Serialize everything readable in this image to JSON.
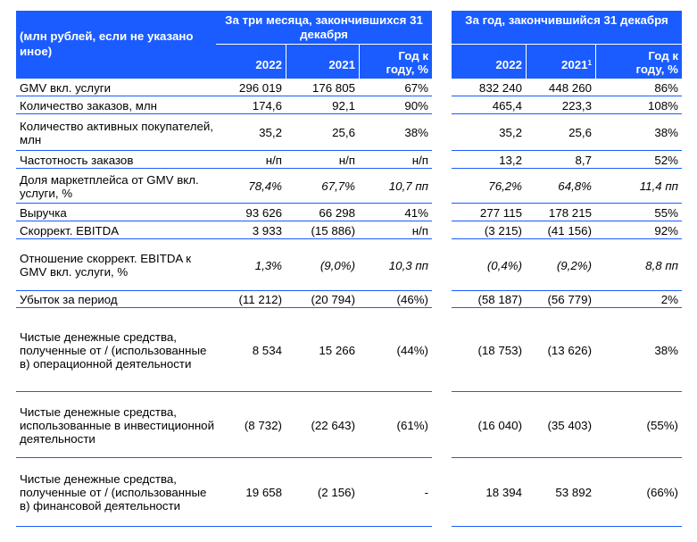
{
  "header": {
    "label": "(млн рублей, если не указано иное)",
    "group1_title": "За три месяца, закончившихся 31 декабря",
    "group2_title": "За год, закончившийся 31 декабря",
    "g1_col1": "2022",
    "g1_col2": "2021",
    "g1_col3": "Год к году, %",
    "g2_col1": "2022",
    "g2_col2": "2021",
    "g2_col2_sup": "1",
    "g2_col3": "Год к году, %"
  },
  "rows": [
    {
      "label": "GMV вкл. услуги",
      "v": [
        "296 019",
        "176 805",
        "67%",
        "832 240",
        "448 260",
        "86%"
      ],
      "italic": false
    },
    {
      "label": "Количество заказов, млн",
      "v": [
        "174,6",
        "92,1",
        "90%",
        "465,4",
        "223,3",
        "108%"
      ],
      "italic": false
    },
    {
      "label": "Количество активных покупателей, млн",
      "v": [
        "35,2",
        "25,6",
        "38%",
        "35,2",
        "25,6",
        "38%"
      ],
      "italic": false
    },
    {
      "label": "Частотность заказов",
      "v": [
        "н/п",
        "н/п",
        "н/п",
        "13,2",
        "8,7",
        "52%"
      ],
      "italic": false
    },
    {
      "label": "Доля маркетплейса от GMV вкл. услуги, %",
      "v": [
        "78,4%",
        "67,7%",
        "10,7 пп",
        "76,2%",
        "64,8%",
        "11,4 пп"
      ],
      "italic": true
    },
    {
      "label": "Выручка",
      "v": [
        "93 626",
        "66 298",
        "41%",
        "277 115",
        "178 215",
        "55%"
      ],
      "italic": false
    },
    {
      "label": "Скоррект. EBITDA",
      "v": [
        "3 933",
        "(15 886)",
        "н/п",
        "(3 215)",
        "(41 156)",
        "92%"
      ],
      "italic": false
    },
    {
      "label": "Отношение скоррект. EBITDA к GMV вкл. услуги, %",
      "v": [
        "1,3%",
        "(9,0%)",
        "10,3 пп",
        "(0,4%)",
        "(9,2%)",
        "8,8 пп"
      ],
      "italic": true
    },
    {
      "label": "Убыток за период",
      "v": [
        "(11 212)",
        "(20 794)",
        "(46%)",
        "(58 187)",
        "(56 779)",
        "2%"
      ],
      "italic": false
    },
    {
      "label": "Чистые денежные средства, полученные от / (использованные в) операционной деятельности",
      "v": [
        "8 534",
        "15 266",
        "(44%)",
        "(18 753)",
        "(13 626)",
        "38%"
      ],
      "italic": false
    },
    {
      "label": "Чистые денежные средства, использованные в инвестиционной деятельности",
      "v": [
        "(8 732)",
        "(22 643)",
        "(61%)",
        "(16 040)",
        "(35 403)",
        "(55%)"
      ],
      "italic": false
    },
    {
      "label": "Чистые денежные средства, полученные от / (использованные в) финансовой деятельности",
      "v": [
        "19 658",
        "(2 156)",
        "-",
        "18 394",
        "53 892",
        "(66%)"
      ],
      "italic": false
    }
  ]
}
